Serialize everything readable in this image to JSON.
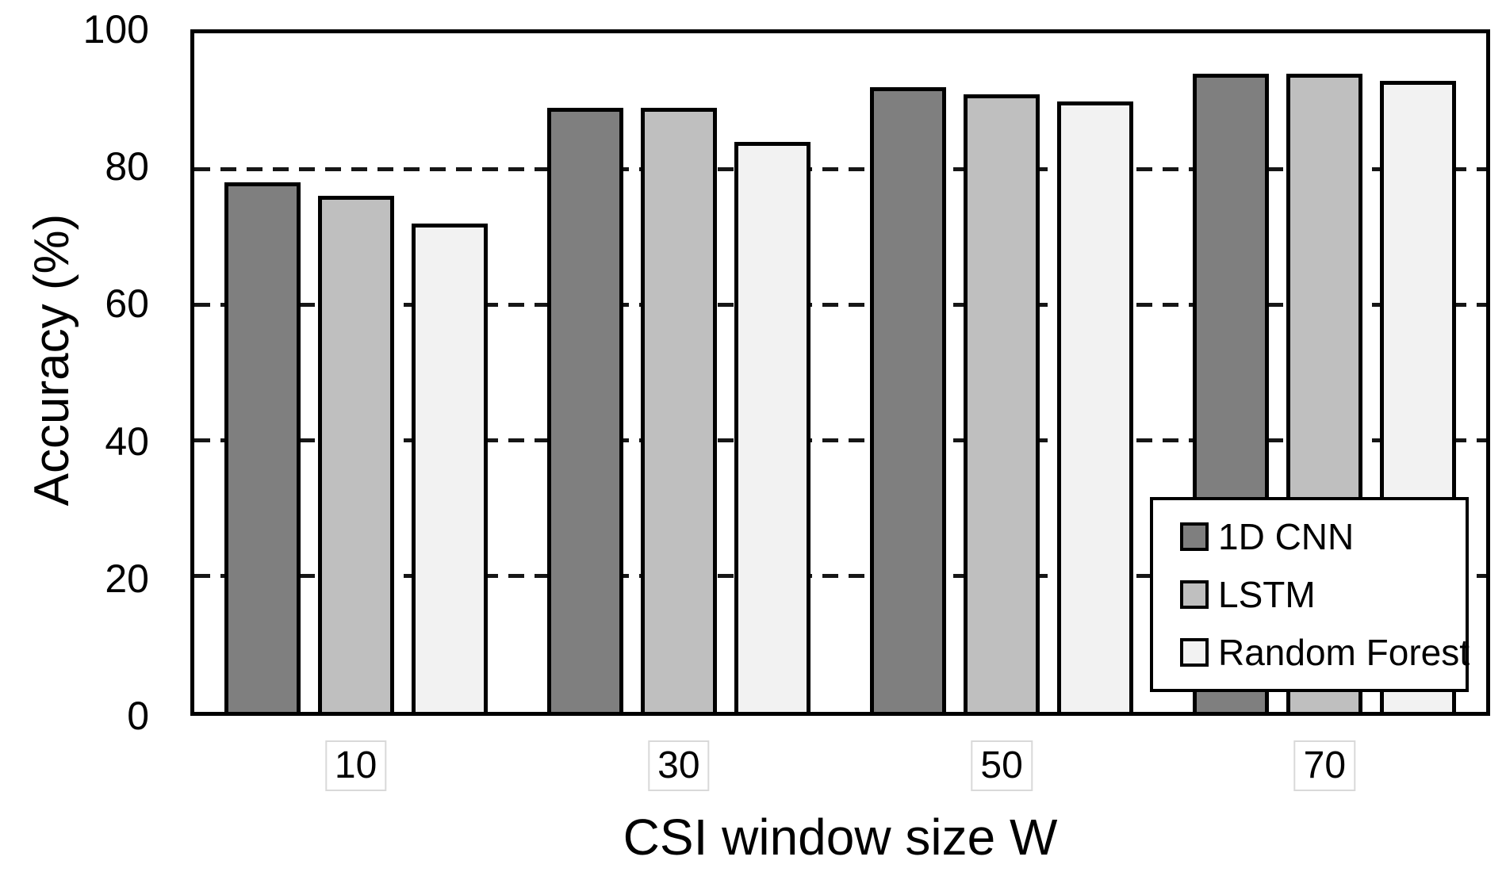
{
  "chart_data": {
    "type": "bar",
    "title": "",
    "categories": [
      "10",
      "30",
      "50",
      "70"
    ],
    "series": [
      {
        "name": "1D CNN",
        "color": "#7f7f7f",
        "values": [
          78,
          89,
          92,
          94
        ]
      },
      {
        "name": "LSTM",
        "color": "#bfbfbf",
        "values": [
          76,
          89,
          91,
          94
        ]
      },
      {
        "name": "Random Forest",
        "color": "#f2f2f2",
        "values": [
          72,
          84,
          90,
          93
        ]
      }
    ],
    "xlabel": "CSI window size W",
    "ylabel": "Accuracy (%)",
    "ylim": [
      0,
      100
    ],
    "yticks": [
      0,
      20,
      40,
      60,
      80,
      100
    ],
    "grid": "horizontal dashed at 20, 40, 60, 80",
    "legend_position": "inside bottom-right"
  },
  "axes": {
    "y_title": "Accuracy (%)",
    "x_title": "CSI window size W",
    "y_tick_labels": [
      "0",
      "20",
      "40",
      "60",
      "80",
      "100"
    ],
    "x_tick_labels": [
      "10",
      "30",
      "50",
      "70"
    ]
  },
  "legend": {
    "items": [
      {
        "label": "1D CNN",
        "swatch_color": "#7f7f7f"
      },
      {
        "label": "LSTM",
        "swatch_color": "#bfbfbf"
      },
      {
        "label": "Random Forest",
        "swatch_color": "#f2f2f2"
      }
    ]
  },
  "colors": {
    "background": "#ffffff",
    "bar_border": "#000000",
    "axis_border": "#000000",
    "gridline": "#161616",
    "text": "#000000",
    "x_label_box_border": "#d9d9d9"
  }
}
